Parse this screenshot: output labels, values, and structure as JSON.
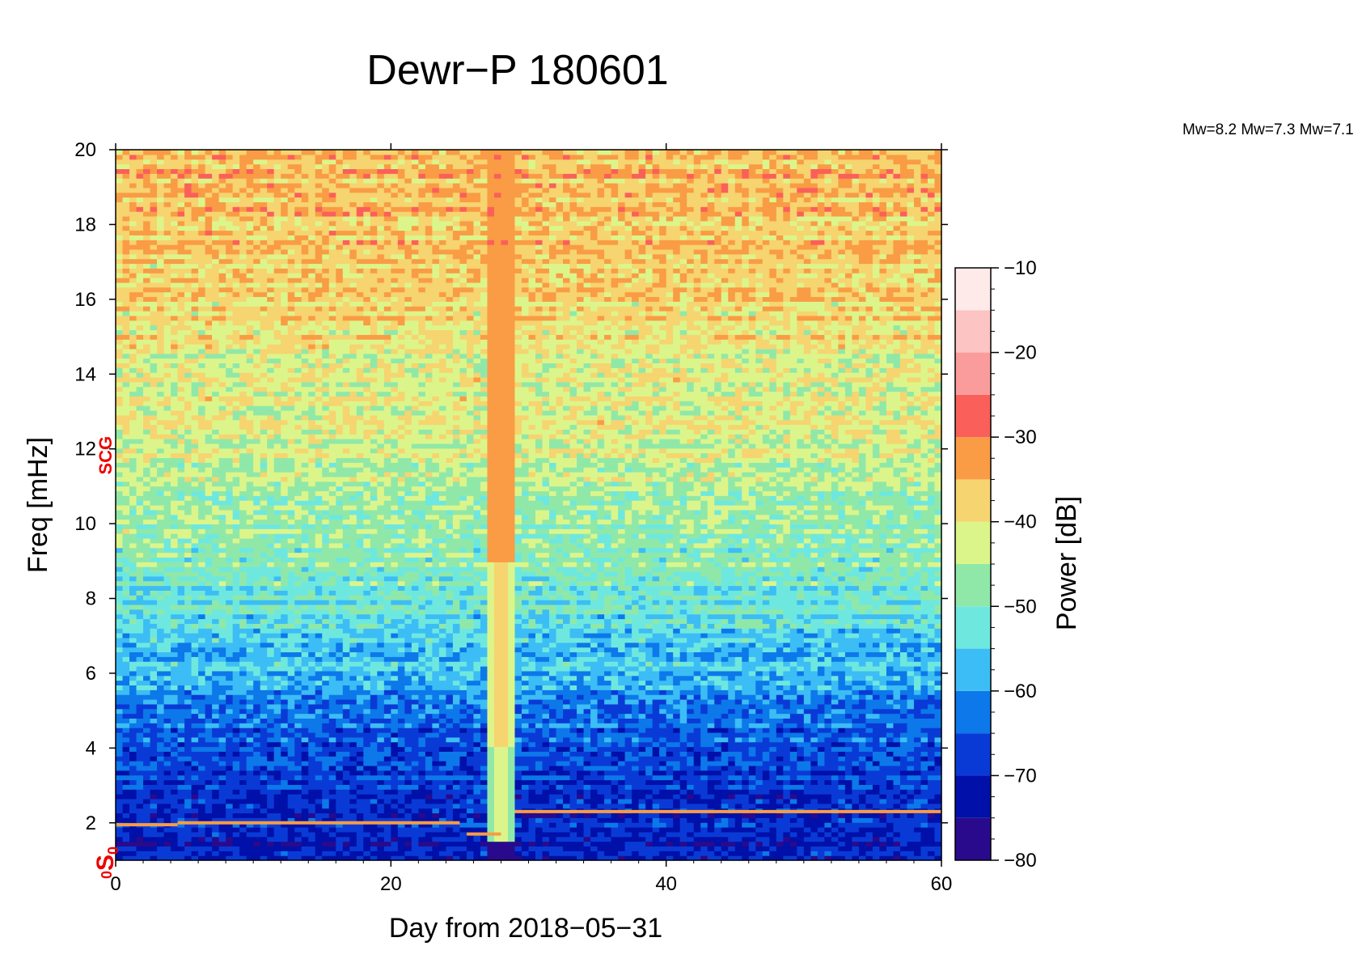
{
  "chart_data": {
    "type": "heatmap",
    "title": "Dewr−P 180601",
    "xlabel": "Day from 2018−05−31",
    "ylabel": "Freq [mHz]",
    "xlim": [
      0,
      60
    ],
    "ylim": [
      1,
      20
    ],
    "x_ticks": [
      "0",
      "20",
      "40",
      "60"
    ],
    "x_tick_values": [
      0,
      20,
      40,
      60
    ],
    "y_ticks": [
      "2",
      "4",
      "6",
      "8",
      "10",
      "12",
      "14",
      "16",
      "18",
      "20"
    ],
    "y_tick_values": [
      2,
      4,
      6,
      8,
      10,
      12,
      14,
      16,
      18,
      20
    ],
    "colorbar": {
      "label": "Power [dB]",
      "range": [
        -80,
        -10
      ],
      "tick_labels": [
        "−10",
        "−20",
        "−30",
        "−40",
        "−50",
        "−60",
        "−70",
        "−80"
      ],
      "tick_values": [
        -10,
        -20,
        -30,
        -40,
        -50,
        -60,
        -70,
        -80
      ],
      "bins": [
        {
          "from": -80,
          "to": -75,
          "color": "#2a0a8c"
        },
        {
          "from": -75,
          "to": -70,
          "color": "#0010a8"
        },
        {
          "from": -70,
          "to": -65,
          "color": "#0a3ad6"
        },
        {
          "from": -65,
          "to": -60,
          "color": "#0c78ea"
        },
        {
          "from": -60,
          "to": -55,
          "color": "#3cbdf5"
        },
        {
          "from": -55,
          "to": -50,
          "color": "#6ee8df"
        },
        {
          "from": -50,
          "to": -45,
          "color": "#90e8a8"
        },
        {
          "from": -45,
          "to": -40,
          "color": "#dcf58a"
        },
        {
          "from": -40,
          "to": -35,
          "color": "#f6d470"
        },
        {
          "from": -35,
          "to": -30,
          "color": "#f99c45"
        },
        {
          "from": -30,
          "to": -25,
          "color": "#fb5f5a"
        },
        {
          "from": -25,
          "to": -20,
          "color": "#fb9c9c"
        },
        {
          "from": -20,
          "to": -15,
          "color": "#fdc4c4"
        },
        {
          "from": -15,
          "to": -10,
          "color": "#ffeaea"
        }
      ]
    },
    "mode_markers": [
      {
        "label": "0S0",
        "freq_mhz": 0.8
      },
      {
        "label": "0S2",
        "freq_mhz": 1.1
      },
      {
        "label": "SCG",
        "freq_mhz": 12.0
      }
    ],
    "magnitude_annotation": "Mw=8.2 Mw=7.3 Mw=7.1",
    "event_day": 28,
    "mode_line": [
      {
        "day_from": 0,
        "day_to": 4.5,
        "freq_mhz": 1.95
      },
      {
        "day_from": 4.5,
        "day_to": 25,
        "freq_mhz": 2.0
      },
      {
        "day_from": 25.5,
        "day_to": 28,
        "freq_mhz": 1.7
      },
      {
        "day_from": 29,
        "day_to": 60,
        "freq_mhz": 2.3
      }
    ],
    "power_profile_db": [
      {
        "freq_mhz": 1,
        "db": -72
      },
      {
        "freq_mhz": 2,
        "db": -70
      },
      {
        "freq_mhz": 4,
        "db": -66
      },
      {
        "freq_mhz": 6,
        "db": -58
      },
      {
        "freq_mhz": 8,
        "db": -52
      },
      {
        "freq_mhz": 10,
        "db": -47
      },
      {
        "freq_mhz": 12,
        "db": -43
      },
      {
        "freq_mhz": 14,
        "db": -41
      },
      {
        "freq_mhz": 16,
        "db": -38
      },
      {
        "freq_mhz": 18,
        "db": -36
      },
      {
        "freq_mhz": 20,
        "db": -35
      }
    ]
  }
}
